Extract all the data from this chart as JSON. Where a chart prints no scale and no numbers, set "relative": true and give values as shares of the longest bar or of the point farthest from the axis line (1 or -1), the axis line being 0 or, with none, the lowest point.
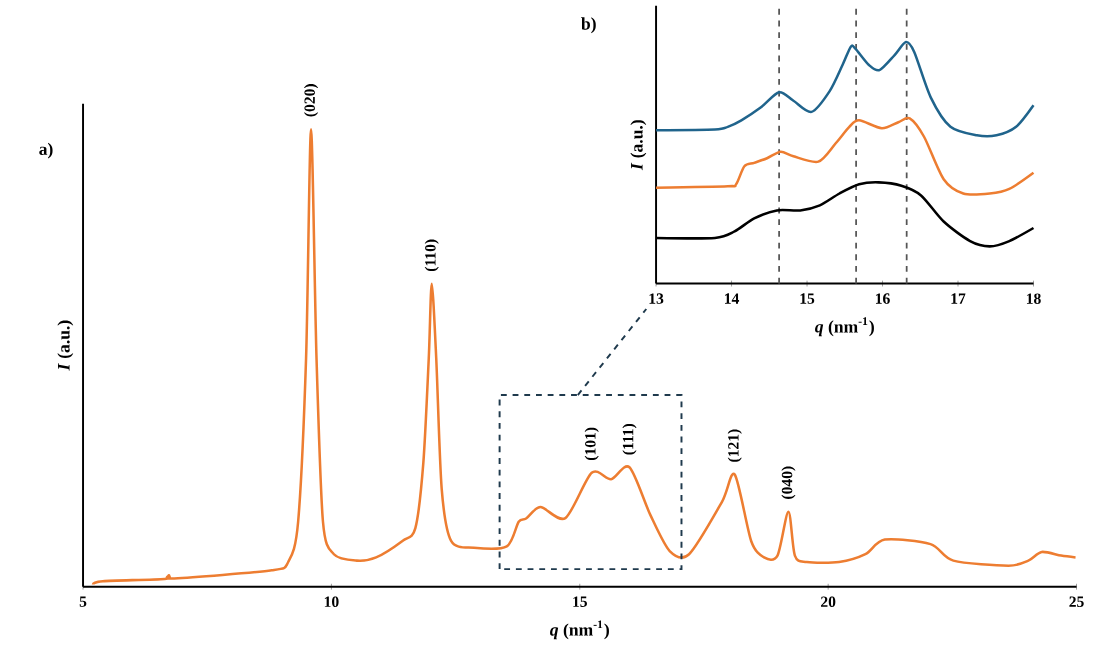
{
  "chart_data": [
    {
      "type": "line",
      "title": "a)",
      "xlabel": "*q* (nm$^{-1}$)",
      "ylabel": "*I* (a.u.)",
      "relative": true,
      "color": "#ed7d31",
      "x": [
        5.2,
        5.4,
        6.64,
        6.73,
        6.84,
        8.8,
        9.13,
        9.33,
        9.49,
        9.59,
        9.7,
        9.83,
        10.05,
        10.51,
        10.9,
        11.43,
        11.69,
        11.85,
        11.96,
        12.02,
        12.11,
        12.22,
        12.41,
        12.87,
        13.53,
        13.77,
        13.92,
        14.21,
        14.71,
        15.24,
        15.63,
        16.0,
        16.42,
        16.81,
        17.2,
        17.86,
        18.12,
        18.45,
        18.71,
        18.98,
        19.2,
        19.33,
        19.57,
        20.22,
        20.75,
        21.14,
        22.06,
        22.52,
        23.63,
        24.03,
        24.3,
        24.69,
        24.98
      ],
      "values": [
        0.005,
        0.012,
        0.017,
        0.025,
        0.018,
        0.036,
        0.054,
        0.142,
        0.5,
        1.0,
        0.5,
        0.142,
        0.071,
        0.057,
        0.064,
        0.1,
        0.128,
        0.27,
        0.5,
        0.662,
        0.5,
        0.214,
        0.1,
        0.085,
        0.088,
        0.142,
        0.149,
        0.174,
        0.15,
        0.249,
        0.235,
        0.261,
        0.157,
        0.078,
        0.071,
        0.185,
        0.245,
        0.1,
        0.064,
        0.068,
        0.164,
        0.068,
        0.054,
        0.054,
        0.071,
        0.103,
        0.093,
        0.057,
        0.046,
        0.057,
        0.076,
        0.068,
        0.064
      ],
      "xlim": [
        5,
        25
      ],
      "xticks": [
        5,
        10,
        15,
        20,
        25
      ],
      "annotations": [
        {
          "text": "(020)",
          "x": 9.59,
          "y": 1.0
        },
        {
          "text": "(110)",
          "x": 12.02,
          "y": 0.662
        },
        {
          "text": "(101)",
          "x": 15.24,
          "y": 0.249
        },
        {
          "text": "(111)",
          "x": 16.0,
          "y": 0.261
        },
        {
          "text": "(121)",
          "x": 18.12,
          "y": 0.245
        },
        {
          "text": "(040)",
          "x": 19.2,
          "y": 0.164
        }
      ]
    },
    {
      "type": "line",
      "title": "b)",
      "xlabel": "*q* (nm$^{-1}$)",
      "ylabel": "*I* (a.u.)",
      "relative": true,
      "xlim": [
        13,
        18
      ],
      "xticks": [
        13,
        14,
        15,
        16,
        17,
        18
      ],
      "series": [
        {
          "color": "#20648c",
          "x": [
            13.0,
            13.78,
            13.95,
            14.13,
            14.39,
            14.63,
            14.82,
            15.06,
            15.3,
            15.47,
            15.58,
            15.64,
            15.82,
            15.96,
            16.16,
            16.31,
            16.42,
            16.64,
            16.9,
            17.25,
            17.51,
            17.77,
            18.0
          ],
          "values": [
            0.635,
            0.638,
            0.649,
            0.676,
            0.73,
            0.792,
            0.757,
            0.711,
            0.797,
            0.905,
            0.981,
            0.973,
            0.905,
            0.884,
            0.946,
            1.0,
            0.959,
            0.77,
            0.649,
            0.614,
            0.614,
            0.649,
            0.738
          ]
        },
        {
          "color": "#ed7d31",
          "x": [
            13.0,
            13.95,
            14.06,
            14.17,
            14.3,
            14.47,
            14.65,
            14.82,
            15.15,
            15.38,
            15.56,
            15.69,
            15.99,
            16.21,
            16.36,
            16.55,
            16.81,
            17.07,
            17.42,
            17.68,
            18.0
          ],
          "values": [
            0.397,
            0.403,
            0.411,
            0.486,
            0.5,
            0.519,
            0.546,
            0.527,
            0.505,
            0.581,
            0.649,
            0.676,
            0.643,
            0.668,
            0.684,
            0.608,
            0.432,
            0.373,
            0.373,
            0.392,
            0.459
          ]
        },
        {
          "color": "#000000",
          "x": [
            13.0,
            13.78,
            14.04,
            14.3,
            14.6,
            14.91,
            15.17,
            15.43,
            15.69,
            15.95,
            16.25,
            16.51,
            16.81,
            17.16,
            17.42,
            17.68,
            18.0
          ],
          "values": [
            0.189,
            0.189,
            0.216,
            0.27,
            0.303,
            0.303,
            0.324,
            0.373,
            0.411,
            0.419,
            0.405,
            0.365,
            0.257,
            0.176,
            0.154,
            0.176,
            0.23
          ]
        }
      ],
      "ref_lines": [
        {
          "axis": "x",
          "value": 14.63,
          "color": "#555555",
          "line_style": "dashed"
        },
        {
          "axis": "x",
          "value": 15.65,
          "color": "#555555",
          "line_style": "dashed"
        },
        {
          "axis": "x",
          "value": 16.32,
          "color": "#555555",
          "line_style": "dashed"
        }
      ]
    }
  ]
}
